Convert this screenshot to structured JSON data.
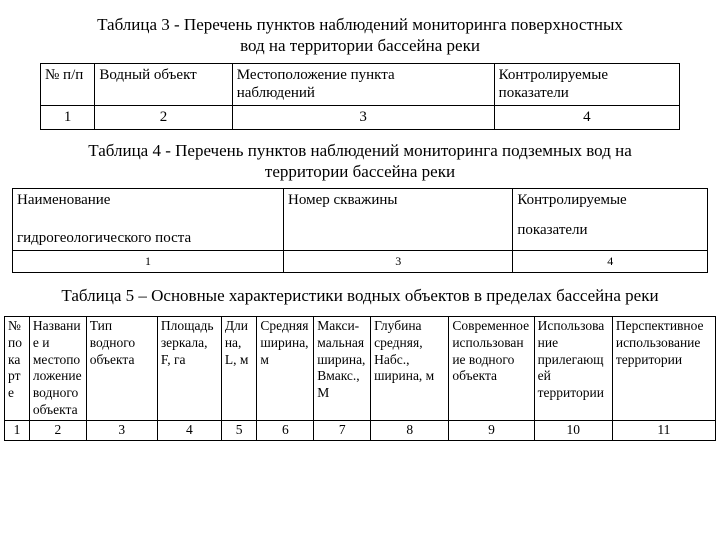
{
  "table3": {
    "title_l1": "Таблица 3 - Перечень пунктов наблюдений мониторинга поверхностных",
    "title_l2": "вод на территории бассейна реки",
    "h1": "№ п/п",
    "h2": "Водный объект",
    "h3a": "Местоположение пункта",
    "h3b": "наблюдений",
    "h4a": "Контролируемые",
    "h4b": "показатели",
    "n1": "1",
    "n2": "2",
    "n3": "3",
    "n4": "4",
    "col_widths": [
      "8.5%",
      "21.5%",
      "41%",
      "29%"
    ]
  },
  "table4": {
    "title_l1": "Таблица  4 - Перечень пунктов наблюдений мониторинга подземных вод на",
    "title_l2": "территории бассейна реки",
    "h1a": "Наименование",
    "h1b": "гидрогеологического поста",
    "h2": "Номер скважины",
    "h3a": "Контролируемые",
    "h3b": "показатели",
    "n1": "1",
    "n3": "3",
    "n4": "4",
    "col_widths": [
      "39%",
      "33%",
      "28%"
    ]
  },
  "table5": {
    "title": "Таблица 5 – Основные характеристики водных объектов в пределах бассейна реки",
    "cols": [
      {
        "w": "3.5%",
        "h": "№ по карте",
        "n": "1"
      },
      {
        "w": "8%",
        "h": "Название и местоположение водного объекта",
        "n": "2"
      },
      {
        "w": "10%",
        "h": "Тип водного объекта",
        "n": "3"
      },
      {
        "w": "9%",
        "h": "Площадь зеркала, F, га",
        "n": "4"
      },
      {
        "w": "5%",
        "h": "Длина, L, м",
        "n": "5"
      },
      {
        "w": "8%",
        "h": "Средняя ширина, м",
        "n": "6"
      },
      {
        "w": "8%",
        "h": "Макси-мальная ширина, Bмакс., М",
        "n": "7"
      },
      {
        "w": "11%",
        "h": "Глубина средняя, Набс., ширина, м",
        "n": "8"
      },
      {
        "w": "12%",
        "h": "Современное использование водного объекта",
        "n": "9"
      },
      {
        "w": "11%",
        "h": "Использование прилегающей территории",
        "n": "10"
      },
      {
        "w": "14.5%",
        "h": "Перспективное использование территории",
        "n": "11"
      }
    ]
  }
}
